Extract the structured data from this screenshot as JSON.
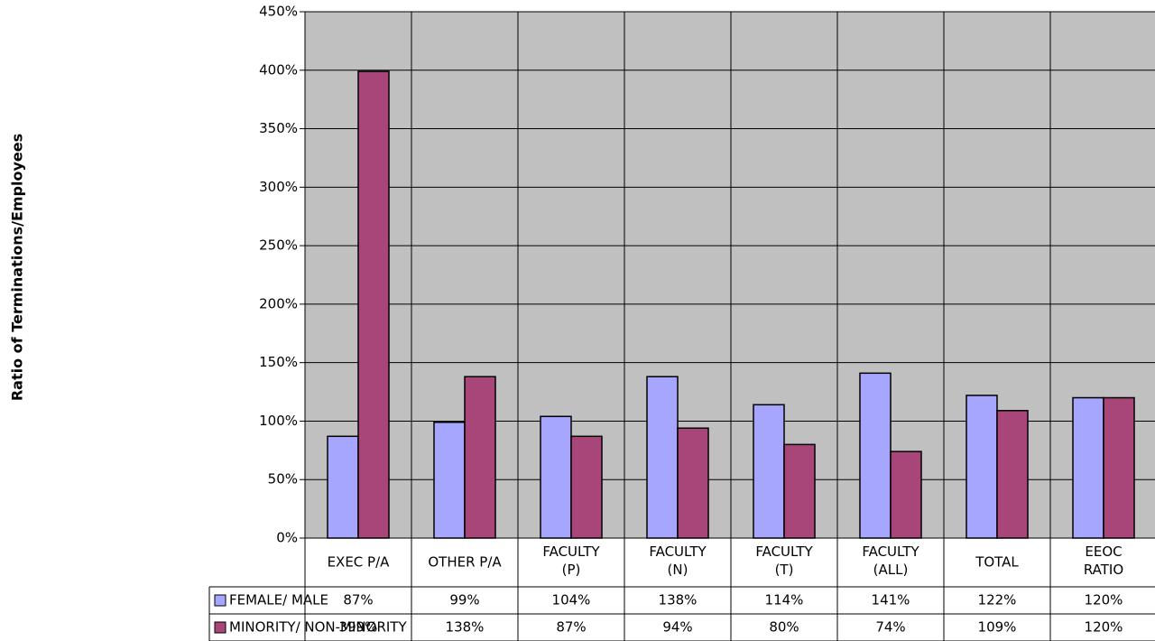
{
  "chart_data": {
    "type": "bar",
    "y_label": "Ratio of Terminations/Employees",
    "categories": [
      "EXEC P/A",
      "OTHER P/A",
      "FACULTY (P)",
      "FACULTY (N)",
      "FACULTY (T)",
      "FACULTY (ALL)",
      "TOTAL",
      "EEOC RATIO"
    ],
    "series": [
      {
        "name": "FEMALE/ MALE",
        "color": "#a6a6ff",
        "values": [
          87,
          99,
          104,
          138,
          114,
          141,
          122,
          120
        ],
        "value_labels": [
          "87%",
          "99%",
          "104%",
          "138%",
          "114%",
          "141%",
          "122%",
          "120%"
        ]
      },
      {
        "name": "MINORITY/ NON-MINORITY",
        "color": "#a8467a",
        "values": [
          399,
          138,
          87,
          94,
          80,
          74,
          109,
          120
        ],
        "value_labels": [
          "399%",
          "138%",
          "87%",
          "94%",
          "80%",
          "74%",
          "109%",
          "120%"
        ]
      }
    ],
    "ylim": [
      0,
      450
    ],
    "yticks": [
      {
        "value": 0,
        "label": "0%"
      },
      {
        "value": 50,
        "label": "50%"
      },
      {
        "value": 100,
        "label": "100%"
      },
      {
        "value": 150,
        "label": "150%"
      },
      {
        "value": 200,
        "label": "200%"
      },
      {
        "value": 250,
        "label": "250%"
      },
      {
        "value": 300,
        "label": "300%"
      },
      {
        "value": 350,
        "label": "350%"
      },
      {
        "value": 400,
        "label": "400%"
      },
      {
        "value": 450,
        "label": "450%"
      }
    ],
    "grid": true,
    "plot_background": "#c0c0c0"
  }
}
